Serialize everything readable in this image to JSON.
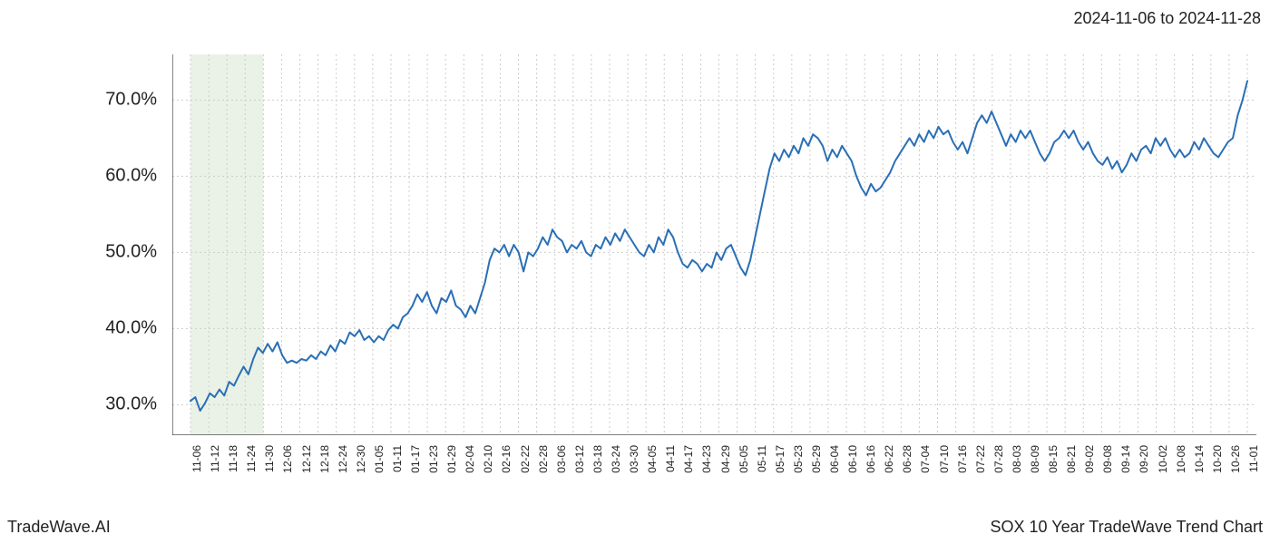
{
  "header": {
    "date_range": "2024-11-06 to 2024-11-28"
  },
  "footer": {
    "left": "TradeWave.AI",
    "right": "SOX 10 Year TradeWave Trend Chart"
  },
  "chart": {
    "type": "line",
    "background_color": "#ffffff",
    "grid_color": "#cccccc",
    "grid_dash": "2,3",
    "axis_color": "#333333",
    "line_color": "#2a6fb5",
    "line_width": 2,
    "highlight_band": {
      "fill": "#d8e8d4",
      "opacity": 0.55,
      "x_start_index": 0,
      "x_end_index": 4
    },
    "y": {
      "min": 26,
      "max": 76,
      "ticks": [
        30,
        40,
        50,
        60,
        70
      ],
      "tick_labels": [
        "30.0%",
        "40.0%",
        "50.0%",
        "60.0%",
        "70.0%"
      ],
      "label_fontsize": 20
    },
    "x": {
      "labels": [
        "11-06",
        "11-12",
        "11-18",
        "11-24",
        "11-30",
        "12-06",
        "12-12",
        "12-18",
        "12-24",
        "12-30",
        "01-05",
        "01-11",
        "01-17",
        "01-23",
        "01-29",
        "02-04",
        "02-10",
        "02-16",
        "02-22",
        "02-28",
        "03-06",
        "03-12",
        "03-18",
        "03-24",
        "03-30",
        "04-05",
        "04-11",
        "04-17",
        "04-23",
        "04-29",
        "05-05",
        "05-11",
        "05-17",
        "05-23",
        "05-29",
        "06-04",
        "06-10",
        "06-16",
        "06-22",
        "06-28",
        "07-04",
        "07-10",
        "07-16",
        "07-22",
        "07-28",
        "08-03",
        "08-09",
        "08-15",
        "08-21",
        "09-02",
        "09-08",
        "09-14",
        "09-20",
        "10-02",
        "10-08",
        "10-14",
        "10-20",
        "10-26",
        "11-01"
      ],
      "label_fontsize": 12,
      "rotation": -90
    },
    "series": {
      "values": [
        30.5,
        31.0,
        29.2,
        30.2,
        31.5,
        31.0,
        32.0,
        31.2,
        33.0,
        32.5,
        33.8,
        35.0,
        34.0,
        36.0,
        37.5,
        36.8,
        38.0,
        37.0,
        38.2,
        36.5,
        35.5,
        35.8,
        35.5,
        36.0,
        35.8,
        36.5,
        36.0,
        37.0,
        36.5,
        37.8,
        37.0,
        38.5,
        38.0,
        39.5,
        39.0,
        39.8,
        38.5,
        39.0,
        38.2,
        39.0,
        38.5,
        39.8,
        40.5,
        40.0,
        41.5,
        42.0,
        43.0,
        44.5,
        43.5,
        44.8,
        43.0,
        42.0,
        44.0,
        43.5,
        45.0,
        43.0,
        42.5,
        41.5,
        43.0,
        42.0,
        44.0,
        46.0,
        49.0,
        50.5,
        50.0,
        51.0,
        49.5,
        51.0,
        50.0,
        47.5,
        50.0,
        49.5,
        50.5,
        52.0,
        51.0,
        53.0,
        52.0,
        51.5,
        50.0,
        51.0,
        50.5,
        51.5,
        50.0,
        49.5,
        51.0,
        50.5,
        52.0,
        51.0,
        52.5,
        51.5,
        53.0,
        52.0,
        51.0,
        50.0,
        49.5,
        51.0,
        50.0,
        52.0,
        51.0,
        53.0,
        52.0,
        50.0,
        48.5,
        48.0,
        49.0,
        48.5,
        47.5,
        48.5,
        48.0,
        50.0,
        49.0,
        50.5,
        51.0,
        49.5,
        48.0,
        47.0,
        49.0,
        52.0,
        55.0,
        58.0,
        61.0,
        63.0,
        62.0,
        63.5,
        62.5,
        64.0,
        63.0,
        65.0,
        64.0,
        65.5,
        65.0,
        64.0,
        62.0,
        63.5,
        62.5,
        64.0,
        63.0,
        62.0,
        60.0,
        58.5,
        57.5,
        59.0,
        58.0,
        58.5,
        59.5,
        60.5,
        62.0,
        63.0,
        64.0,
        65.0,
        64.0,
        65.5,
        64.5,
        66.0,
        65.0,
        66.5,
        65.5,
        66.0,
        64.5,
        63.5,
        64.5,
        63.0,
        65.0,
        67.0,
        68.0,
        67.0,
        68.5,
        67.0,
        65.5,
        64.0,
        65.5,
        64.5,
        66.0,
        65.0,
        66.0,
        64.5,
        63.0,
        62.0,
        63.0,
        64.5,
        65.0,
        66.0,
        65.0,
        66.0,
        64.5,
        63.5,
        64.5,
        63.0,
        62.0,
        61.5,
        62.5,
        61.0,
        62.0,
        60.5,
        61.5,
        63.0,
        62.0,
        63.5,
        64.0,
        63.0,
        65.0,
        64.0,
        65.0,
        63.5,
        62.5,
        63.5,
        62.5,
        63.0,
        64.5,
        63.5,
        65.0,
        64.0,
        63.0,
        62.5,
        63.5,
        64.5,
        65.0,
        68.0,
        70.0,
        72.5
      ]
    }
  }
}
